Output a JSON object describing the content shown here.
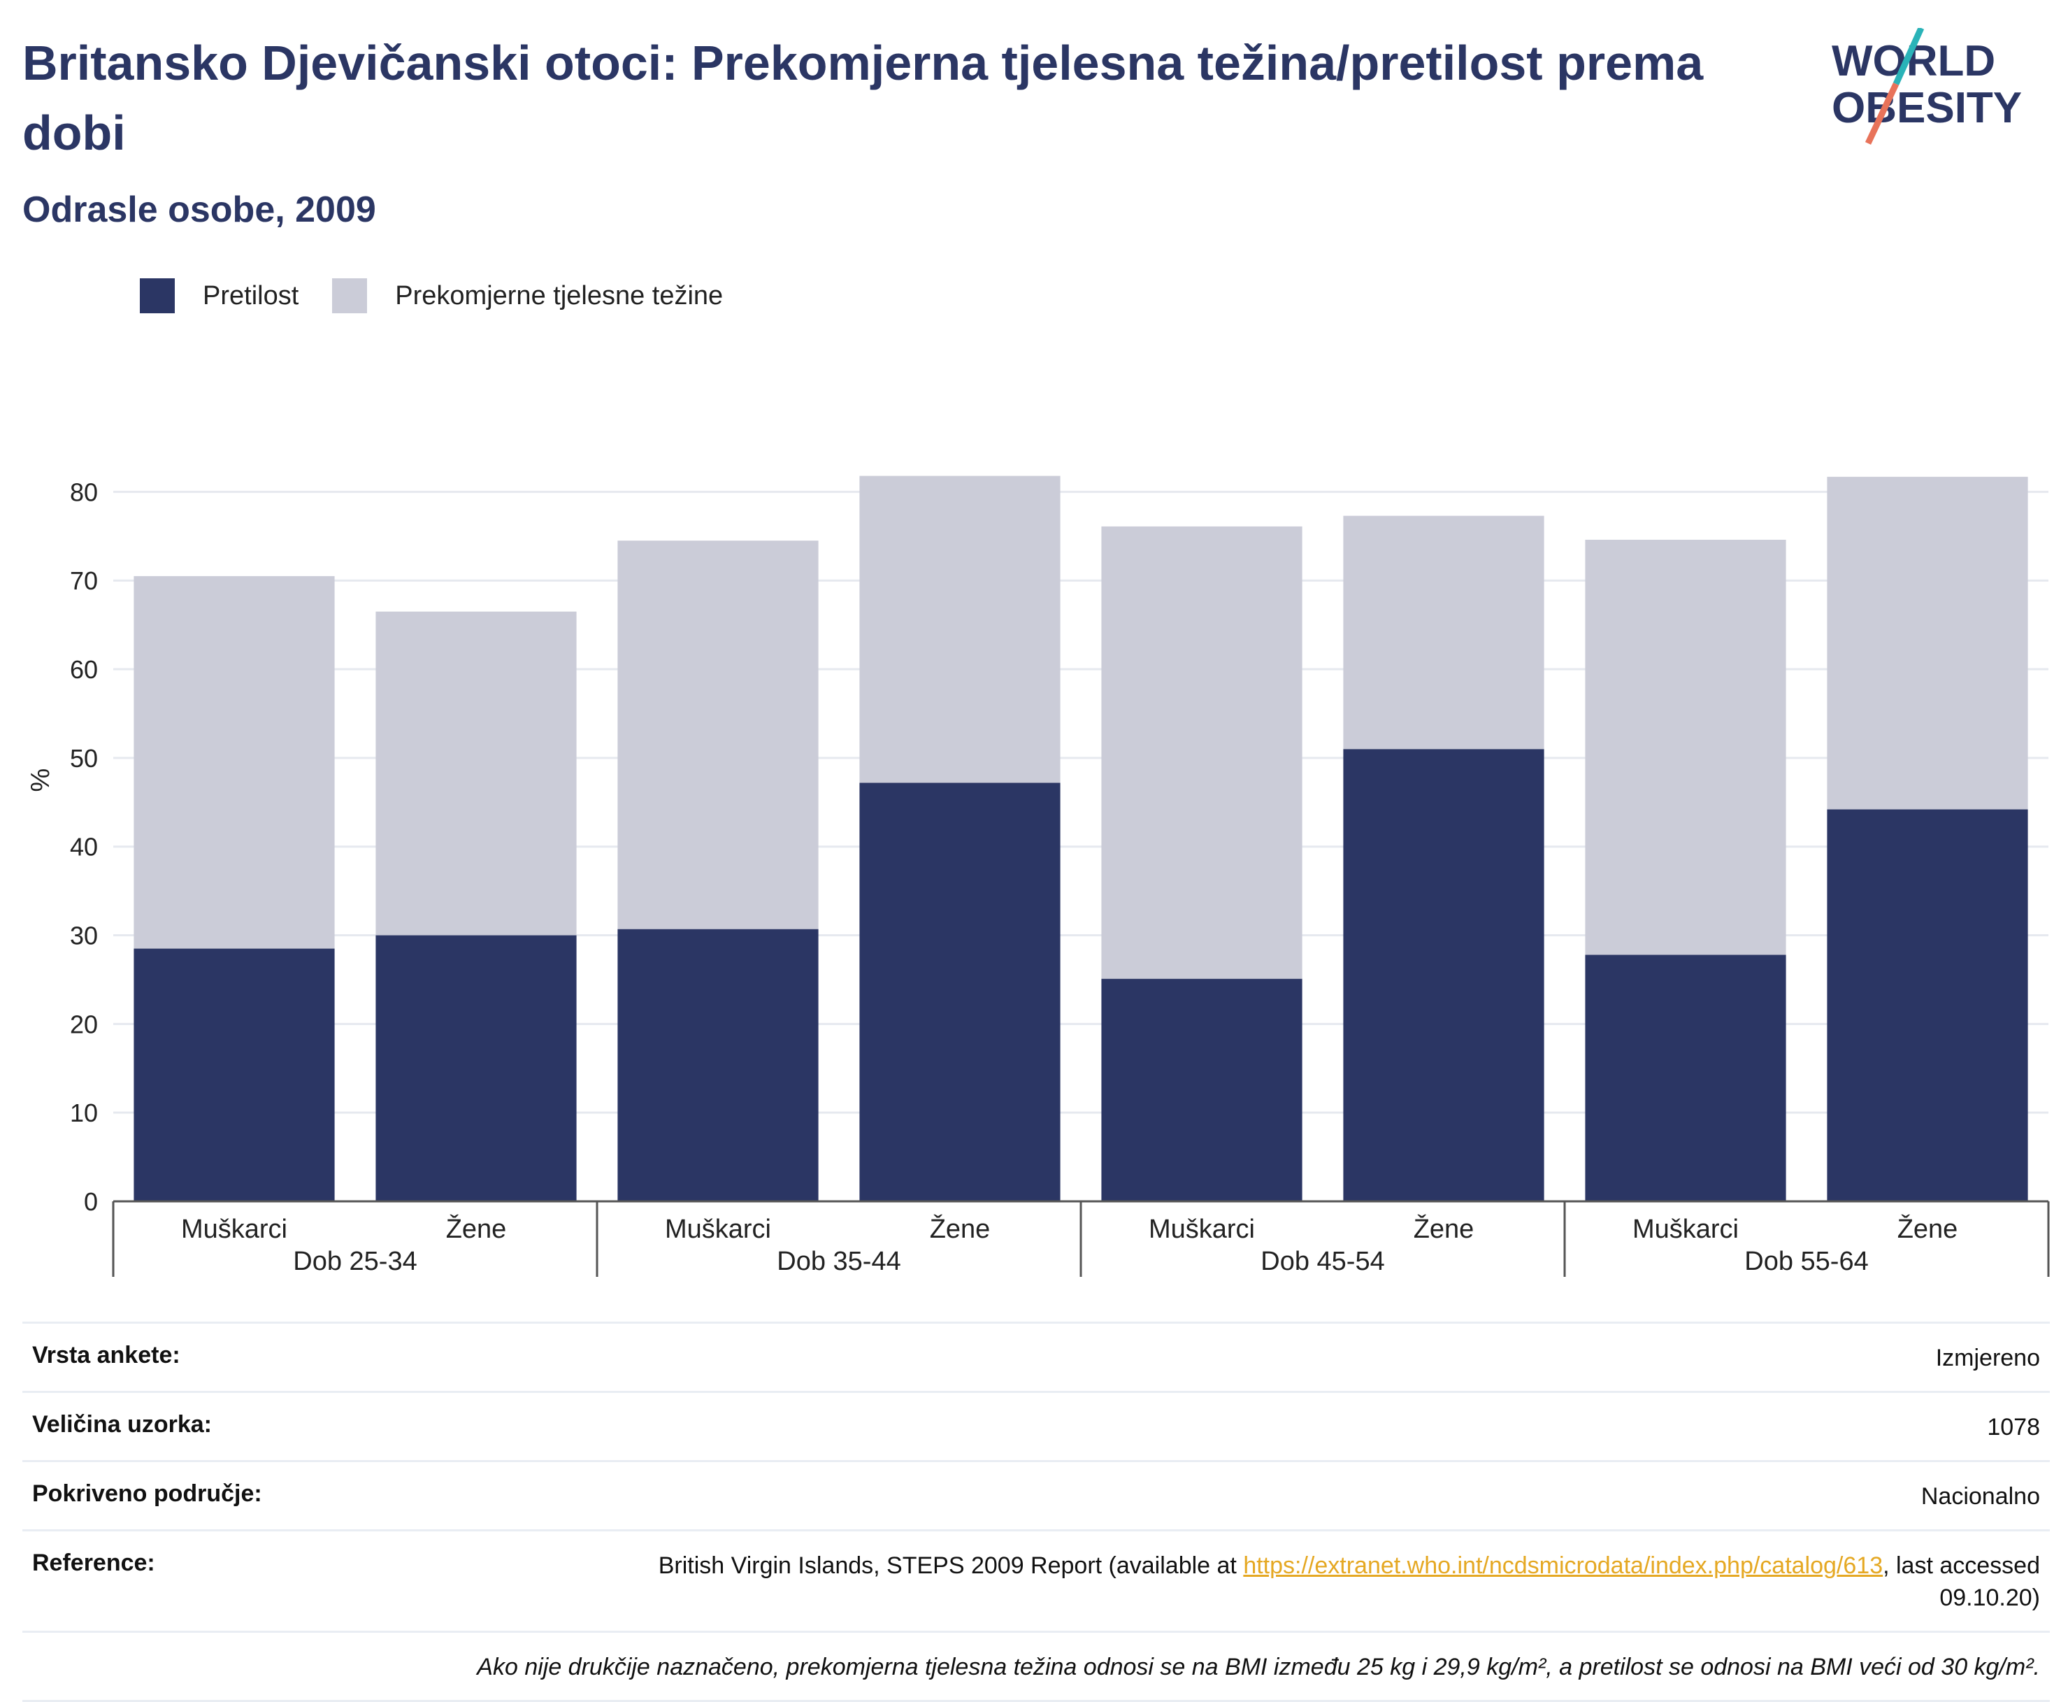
{
  "header": {
    "title": "Britansko Djevičanski otoci: Prekomjerna tjelesna težina/pretilost prema dobi",
    "subtitle": "Odrasle osobe, 2009"
  },
  "logo": {
    "line1": "WORLD",
    "line2": "OBESITY",
    "accent_teal": "#2ab3b8",
    "accent_coral": "#e8735a"
  },
  "legend": [
    {
      "label": "Pretilost",
      "color": "#2b3664"
    },
    {
      "label": "Prekomjerne tjelesne težine",
      "color": "#cbccd8"
    }
  ],
  "chart_data": {
    "type": "bar",
    "stacked": true,
    "ylabel": "%",
    "ylim": [
      0,
      85
    ],
    "yticks": [
      0,
      10,
      20,
      30,
      40,
      50,
      60,
      70,
      80
    ],
    "grid": true,
    "legend_position": "top-left",
    "groups": [
      "Dob 25-34",
      "Dob 35-44",
      "Dob 45-54",
      "Dob 55-64"
    ],
    "categories": [
      "Muškarci",
      "Žene",
      "Muškarci",
      "Žene",
      "Muškarci",
      "Žene",
      "Muškarci",
      "Žene"
    ],
    "series": [
      {
        "name": "Pretilost",
        "color": "#2b3664",
        "values": [
          28.5,
          30.0,
          30.7,
          47.2,
          25.1,
          51.0,
          27.8,
          44.2
        ]
      },
      {
        "name": "Prekomjerne tjelesne težine",
        "color": "#cbccd8",
        "values": [
          42.0,
          36.5,
          43.8,
          34.6,
          51.0,
          26.3,
          46.8,
          37.5
        ]
      }
    ]
  },
  "info": {
    "rows": [
      {
        "key": "Vrsta ankete:",
        "value": "Izmjereno"
      },
      {
        "key": "Veličina uzorka:",
        "value": "1078"
      },
      {
        "key": "Pokriveno područje:",
        "value": "Nacionalno"
      }
    ],
    "reference": {
      "key": "Reference:",
      "prefix": "British Virgin Islands, STEPS 2009 Report (available at ",
      "link": "https://extranet.who.int/ncdsmicrodata/index.php/catalog/613",
      "suffix": ", last accessed 09.10.20)"
    },
    "footnote": "Ako nije drukčije naznačeno, prekomjerna tjelesna težina odnosi se na BMI između 25 kg i 29,9 kg/m², a pretilost se odnosi na BMI veći od 30 kg/m²."
  }
}
